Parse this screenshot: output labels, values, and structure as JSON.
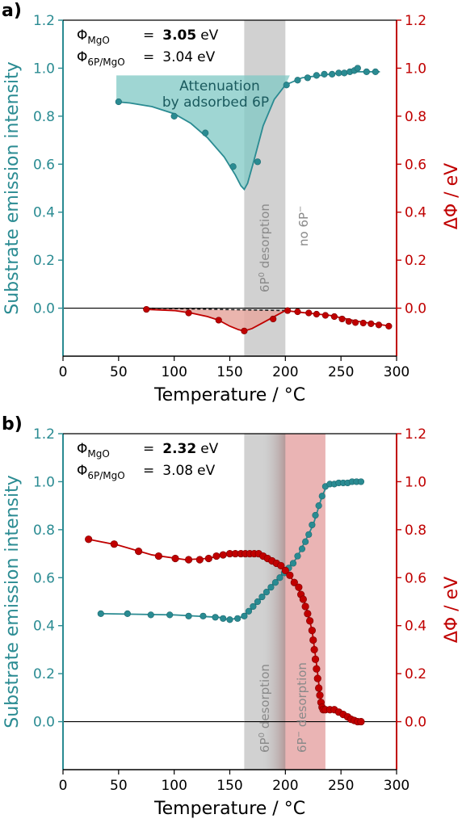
{
  "colors": {
    "teal": "#2a8b92",
    "red": "#c00000",
    "gray_band": "#b3b3b3",
    "red_band": "#d66a6a",
    "teal_fill": "#7fc8c4",
    "red_fill": "#e6a8a0"
  },
  "chart_data": [
    {
      "panel": "a)",
      "type": "line",
      "xlabel": "Temperature / °C",
      "ylabel_left": "Substrate emission intensity",
      "ylabel_right": "ΔΦ / eV",
      "xlim": [
        0,
        300
      ],
      "ylim_left": [
        -0.2,
        1.2
      ],
      "ylim_right": [
        -0.2,
        1.2
      ],
      "xticks": [
        "0",
        "50",
        "100",
        "150",
        "200",
        "250",
        "300"
      ],
      "yticks_left": [
        "0.0",
        "0.2",
        "0.4",
        "0.6",
        "0.8",
        "1.0",
        "1.2"
      ],
      "yticks_right": [
        "0.0",
        "0.2",
        "0.4",
        "0.6",
        "0.8",
        "1.0",
        "1.2"
      ],
      "legend_lines": [
        {
          "sym": "Φ",
          "sub": "MgO",
          "eq": "=",
          "val": "3.05",
          "unit": "eV",
          "bold": true
        },
        {
          "sym": "Φ",
          "sub": "6P/MgO",
          "eq": "=",
          "val": "3.04",
          "unit": "eV",
          "bold": false
        }
      ],
      "annotation": [
        "Attenuation",
        "by adsorbed 6P"
      ],
      "bands": [
        {
          "x": [
            163,
            200
          ],
          "color": "gray",
          "label_main": "6P",
          "label_sup": "0",
          "label_tail": " desorption"
        }
      ],
      "band_label_right": {
        "main": "no 6P",
        "sup": "−"
      },
      "teal_fill_level": 0.97,
      "series": [
        {
          "axis": "left",
          "color": "teal",
          "x": [
            50,
            100,
            128,
            153,
            175,
            201,
            211,
            220,
            228,
            235,
            242,
            248,
            253,
            258,
            262,
            265,
            273,
            281
          ],
          "y": [
            0.86,
            0.8,
            0.73,
            0.59,
            0.61,
            0.93,
            0.95,
            0.96,
            0.97,
            0.975,
            0.975,
            0.98,
            0.98,
            0.985,
            0.99,
            1.0,
            0.985,
            0.985
          ],
          "curve_x": [
            48,
            60,
            80,
            100,
            115,
            130,
            145,
            155,
            160,
            163,
            166,
            172,
            180,
            190,
            200,
            215,
            240,
            265,
            285
          ],
          "curve_y": [
            0.86,
            0.855,
            0.84,
            0.81,
            0.77,
            0.71,
            0.63,
            0.555,
            0.51,
            0.495,
            0.52,
            0.62,
            0.76,
            0.87,
            0.93,
            0.96,
            0.975,
            0.985,
            0.985
          ]
        },
        {
          "axis": "right",
          "color": "red",
          "x": [
            75,
            113,
            140,
            163,
            189,
            202,
            211,
            221,
            228,
            236,
            244,
            251,
            257,
            263,
            270,
            277,
            284,
            293
          ],
          "y": [
            -0.005,
            -0.02,
            -0.05,
            -0.095,
            -0.045,
            -0.01,
            -0.015,
            -0.02,
            -0.025,
            -0.03,
            -0.035,
            -0.045,
            -0.055,
            -0.06,
            -0.062,
            -0.065,
            -0.07,
            -0.075
          ],
          "curve_x": [
            75,
            100,
            115,
            130,
            140,
            150,
            158,
            163,
            170,
            180,
            190,
            200,
            215,
            240,
            265,
            295
          ],
          "curve_y": [
            -0.005,
            -0.01,
            -0.02,
            -0.035,
            -0.05,
            -0.075,
            -0.09,
            -0.095,
            -0.085,
            -0.06,
            -0.035,
            -0.01,
            -0.018,
            -0.03,
            -0.055,
            -0.075
          ],
          "baseline_x": [
            75,
            200
          ],
          "baseline_y": [
            0.0,
            -0.01
          ]
        }
      ]
    },
    {
      "panel": "b)",
      "type": "line",
      "xlabel": "Temperature / °C",
      "ylabel_left": "Substrate emission intensity",
      "ylabel_right": "ΔΦ / eV",
      "xlim": [
        0,
        300
      ],
      "ylim_left": [
        -0.2,
        1.2
      ],
      "ylim_right": [
        -0.2,
        1.2
      ],
      "xticks": [
        "0",
        "50",
        "100",
        "150",
        "200",
        "250",
        "300"
      ],
      "yticks_left": [
        "0.0",
        "0.2",
        "0.4",
        "0.6",
        "0.8",
        "1.0",
        "1.2"
      ],
      "yticks_right": [
        "0.0",
        "0.2",
        "0.4",
        "0.6",
        "0.8",
        "1.0",
        "1.2"
      ],
      "legend_lines": [
        {
          "sym": "Φ",
          "sub": "MgO",
          "eq": "=",
          "val": "2.32",
          "unit": "eV",
          "bold": true
        },
        {
          "sym": "Φ",
          "sub": "6P/MgO",
          "eq": "=",
          "val": "3.08",
          "unit": "eV",
          "bold": false
        }
      ],
      "bands": [
        {
          "x": [
            163,
            200
          ],
          "color": "gray",
          "label_main": "6P",
          "label_sup": "0",
          "label_tail": " desorption"
        },
        {
          "x": [
            200,
            236
          ],
          "color": "red",
          "label_main": "6P",
          "label_sup": "−",
          "label_tail": " desorption"
        }
      ],
      "series": [
        {
          "axis": "left",
          "color": "teal",
          "x": [
            34,
            58,
            79,
            96,
            113,
            126,
            137,
            144,
            150,
            157,
            163,
            167,
            171,
            175,
            179,
            183,
            187,
            191,
            195,
            199,
            203,
            207,
            211,
            215,
            218,
            221,
            224,
            227,
            230,
            233,
            236,
            240,
            244,
            248,
            252,
            256,
            260,
            264,
            268
          ],
          "y": [
            0.45,
            0.45,
            0.445,
            0.445,
            0.44,
            0.44,
            0.435,
            0.43,
            0.425,
            0.43,
            0.44,
            0.46,
            0.48,
            0.5,
            0.52,
            0.54,
            0.56,
            0.58,
            0.6,
            0.62,
            0.64,
            0.66,
            0.69,
            0.72,
            0.75,
            0.78,
            0.82,
            0.86,
            0.9,
            0.94,
            0.98,
            0.99,
            0.99,
            0.995,
            0.995,
            0.995,
            1.0,
            1.0,
            1.0
          ],
          "curve_x": [
            34,
            100,
            140,
            150,
            160,
            170,
            190,
            210,
            225,
            233,
            238,
            268
          ],
          "curve_y": [
            0.45,
            0.445,
            0.435,
            0.425,
            0.435,
            0.47,
            0.58,
            0.68,
            0.82,
            0.94,
            0.99,
            1.0
          ]
        },
        {
          "axis": "right",
          "color": "red",
          "x": [
            23,
            46,
            68,
            86,
            101,
            113,
            123,
            131,
            138,
            144,
            150,
            155,
            160,
            164,
            168,
            172,
            176,
            180,
            184,
            188,
            192,
            196,
            200,
            204,
            208,
            212,
            214,
            216,
            218,
            220,
            222,
            224,
            225,
            226,
            227,
            228,
            229,
            230,
            231,
            232,
            233,
            234,
            236,
            240,
            244,
            248,
            252,
            256,
            259,
            262,
            265,
            268
          ],
          "y": [
            0.76,
            0.74,
            0.71,
            0.69,
            0.68,
            0.675,
            0.675,
            0.68,
            0.69,
            0.695,
            0.7,
            0.7,
            0.7,
            0.7,
            0.7,
            0.7,
            0.7,
            0.69,
            0.68,
            0.67,
            0.66,
            0.65,
            0.63,
            0.61,
            0.58,
            0.56,
            0.53,
            0.51,
            0.48,
            0.45,
            0.42,
            0.38,
            0.34,
            0.3,
            0.26,
            0.22,
            0.18,
            0.14,
            0.11,
            0.08,
            0.06,
            0.05,
            0.05,
            0.05,
            0.05,
            0.04,
            0.03,
            0.02,
            0.01,
            0.005,
            0.0,
            0.0
          ],
          "curve_x": [
            23,
            50,
            80,
            110,
            130,
            150,
            170,
            185,
            200,
            210,
            218,
            224,
            228,
            231,
            234,
            240,
            250,
            260,
            268
          ],
          "curve_y": [
            0.76,
            0.735,
            0.695,
            0.675,
            0.68,
            0.7,
            0.7,
            0.68,
            0.63,
            0.57,
            0.49,
            0.38,
            0.24,
            0.12,
            0.05,
            0.05,
            0.035,
            0.01,
            0.0
          ]
        }
      ]
    }
  ]
}
